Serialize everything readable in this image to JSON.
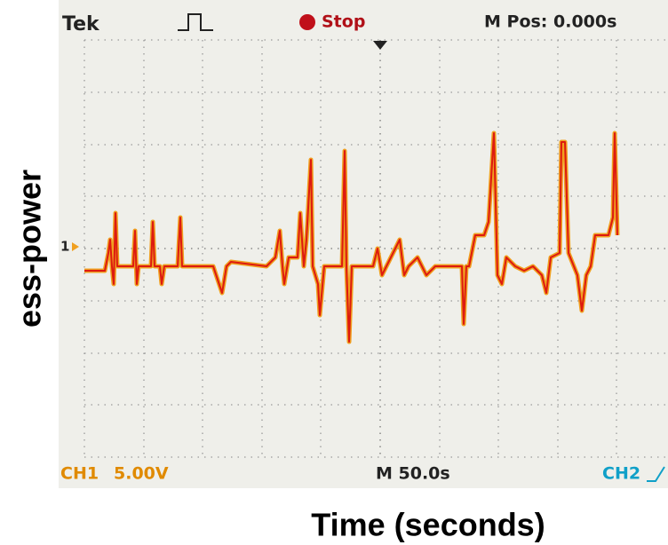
{
  "screen": {
    "brand": "Tek",
    "status": "Stop",
    "position": "M Pos: 0.000s",
    "channel1": "CH1",
    "ch1_scale": "5.00V",
    "timebase": "M 50.0s",
    "channel2": "CH2",
    "marker": "1"
  },
  "axes": {
    "y_label": "ess-power",
    "x_label": "Time (seconds)"
  }
}
